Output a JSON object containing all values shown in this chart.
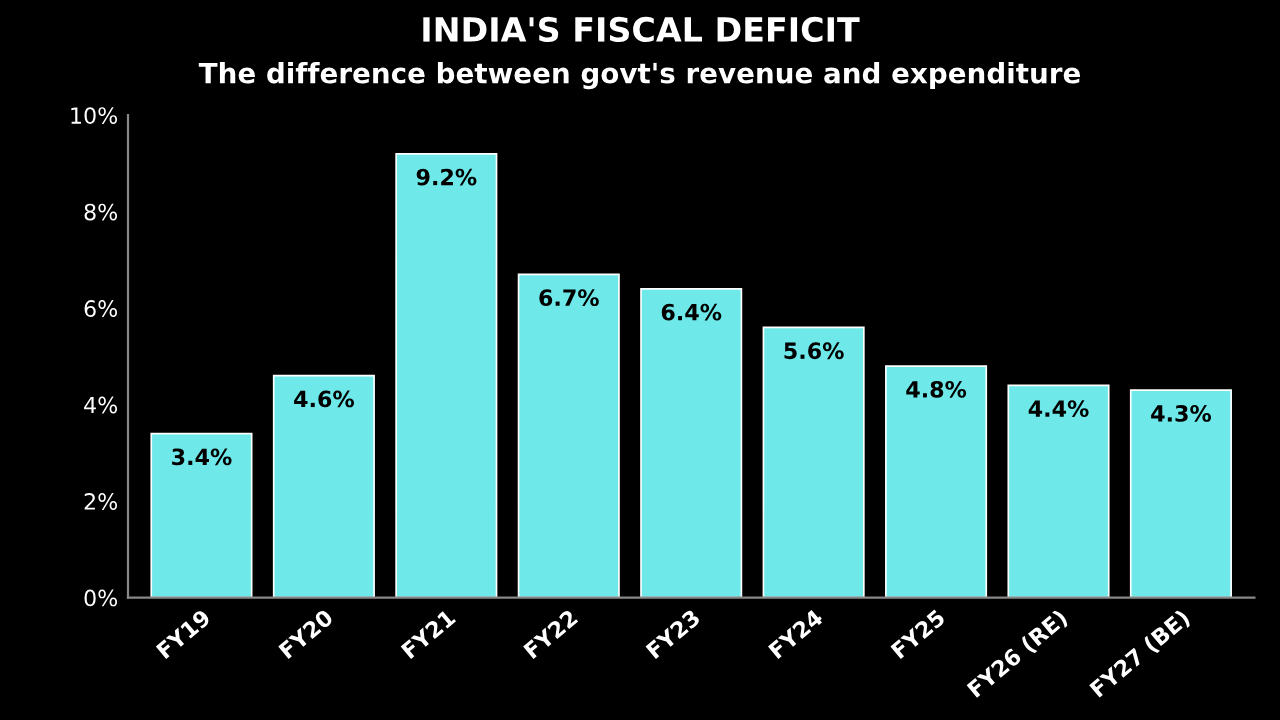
{
  "chart_data": {
    "type": "bar",
    "title": "INDIA'S FISCAL DEFICIT",
    "subtitle": "The difference between govt's revenue and expenditure",
    "categories": [
      "FY19",
      "FY20",
      "FY21",
      "FY22",
      "FY23",
      "FY24",
      "FY25",
      "FY26 (RE)",
      "FY27 (BE)"
    ],
    "values": [
      3.4,
      4.6,
      9.2,
      6.7,
      6.4,
      5.6,
      4.8,
      4.4,
      4.3
    ],
    "value_labels": [
      "3.4%",
      "4.6%",
      "9.2%",
      "6.7%",
      "6.4%",
      "5.6%",
      "4.8%",
      "4.4%",
      "4.3%"
    ],
    "color": "#6ee8e8",
    "ylim": [
      0,
      10
    ],
    "yticks": [
      {
        "value": 0,
        "label": "0%"
      },
      {
        "value": 2,
        "label": "2%"
      },
      {
        "value": 4,
        "label": "4%"
      },
      {
        "value": 6,
        "label": "6%"
      },
      {
        "value": 8,
        "label": "8%"
      },
      {
        "value": 10,
        "label": "10%"
      }
    ],
    "grid": false,
    "legend": false
  }
}
